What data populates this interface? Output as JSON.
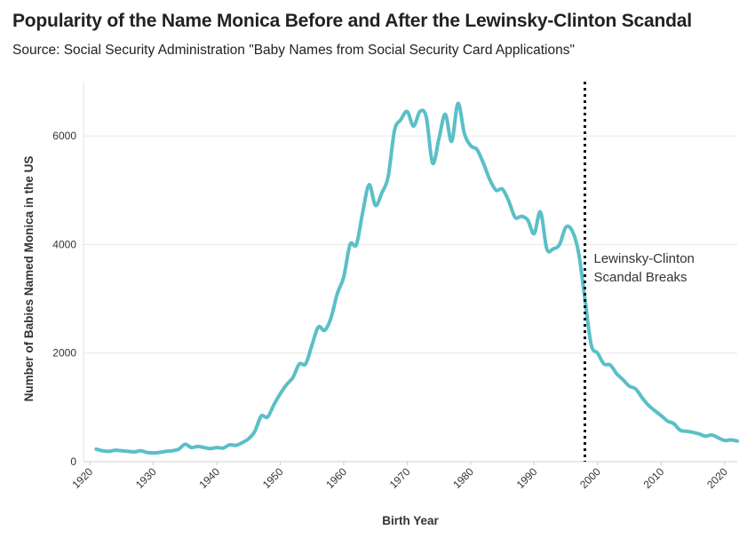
{
  "title": "Popularity of the Name Monica Before and After the Lewinsky-Clinton Scandal",
  "subtitle": "Source: Social Security Administration \"Baby Names from Social Security Card Applications\"",
  "chart_data": {
    "type": "line",
    "xlabel": "Birth Year",
    "ylabel": "Number of Babies Named Monica in the US",
    "xlim": [
      1919,
      2022
    ],
    "ylim": [
      0,
      7000
    ],
    "x_ticks": [
      1920,
      1930,
      1940,
      1950,
      1960,
      1970,
      1980,
      1990,
      2000,
      2010,
      2020
    ],
    "y_ticks": [
      0,
      2000,
      4000,
      6000
    ],
    "grid": true,
    "line_color": "#5bbfc7",
    "annotation": {
      "x": 1998,
      "label_lines": [
        "Lewinsky-Clinton",
        "Scandal Breaks"
      ],
      "style": "dotted vertical line"
    },
    "series": [
      {
        "x": [
          1921,
          1922,
          1923,
          1924,
          1925,
          1926,
          1927,
          1928,
          1929,
          1930,
          1931,
          1932,
          1933,
          1934,
          1935,
          1936,
          1937,
          1938,
          1939,
          1940,
          1941,
          1942,
          1943,
          1944,
          1945,
          1946,
          1947,
          1948,
          1949,
          1950,
          1951,
          1952,
          1953,
          1954,
          1955,
          1956,
          1957,
          1958,
          1959,
          1960,
          1961,
          1962,
          1963,
          1964,
          1965,
          1966,
          1967,
          1968,
          1969,
          1970,
          1971,
          1972,
          1973,
          1974,
          1975,
          1976,
          1977,
          1978,
          1979,
          1980,
          1981,
          1982,
          1983,
          1984,
          1985,
          1986,
          1987,
          1988,
          1989,
          1990,
          1991,
          1992,
          1993,
          1994,
          1995,
          1996,
          1997,
          1998,
          1999,
          2000,
          2001,
          2002,
          2003,
          2004,
          2005,
          2006,
          2007,
          2008,
          2009,
          2010,
          2011,
          2012,
          2013,
          2014,
          2015,
          2016,
          2017,
          2018,
          2019,
          2020,
          2021,
          2022
        ],
        "values": [
          230,
          200,
          190,
          210,
          200,
          190,
          180,
          200,
          170,
          160,
          170,
          190,
          200,
          230,
          320,
          260,
          280,
          260,
          240,
          260,
          250,
          310,
          300,
          350,
          420,
          560,
          840,
          820,
          1050,
          1250,
          1420,
          1550,
          1800,
          1800,
          2150,
          2480,
          2420,
          2650,
          3100,
          3400,
          4000,
          4000,
          4600,
          5100,
          4720,
          4950,
          5250,
          6100,
          6300,
          6450,
          6180,
          6450,
          6350,
          5500,
          5950,
          6400,
          5900,
          6600,
          6050,
          5820,
          5750,
          5500,
          5200,
          5000,
          5020,
          4800,
          4500,
          4520,
          4450,
          4200,
          4600,
          3920,
          3920,
          4000,
          4320,
          4250,
          3850,
          3000,
          2150,
          2000,
          1800,
          1780,
          1620,
          1510,
          1390,
          1340,
          1180,
          1040,
          940,
          850,
          750,
          700,
          580,
          560,
          540,
          510,
          470,
          490,
          440,
          390,
          400,
          380
        ]
      }
    ]
  }
}
